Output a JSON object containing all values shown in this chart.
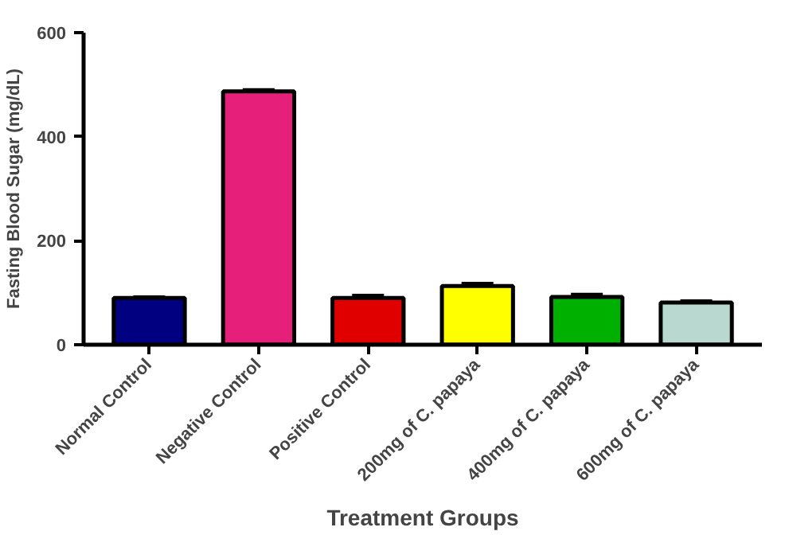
{
  "chart_data": {
    "type": "bar",
    "xlabel": "Treatment Groups",
    "ylabel": "Fasting Blood Sugar (mg/dL)",
    "categories": [
      "Normal Control",
      "Negative Control",
      "Positive Control",
      "200mg of C. papaya",
      "400mg of C. papaya",
      "600mg of C. papaya"
    ],
    "values": [
      90,
      487,
      90,
      113,
      92,
      81
    ],
    "errors": [
      2,
      3,
      5,
      5,
      5,
      3
    ],
    "colors": [
      "#000080",
      "#e6207a",
      "#e00000",
      "#ffff00",
      "#00b000",
      "#b8d8d0"
    ],
    "ylim": [
      0,
      600
    ],
    "yticks": [
      0,
      200,
      400,
      600
    ],
    "grid": false
  }
}
